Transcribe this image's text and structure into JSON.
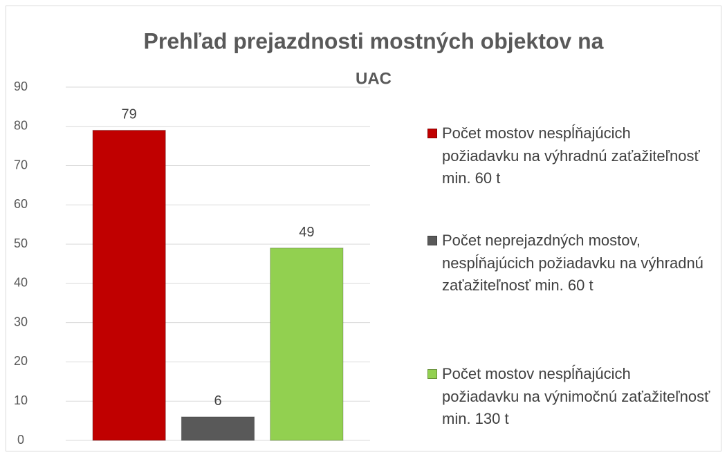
{
  "chart_data": {
    "type": "bar",
    "title": "Prehľad prejazdnosti mostných objektov na",
    "subtitle": "UAC",
    "categories": [
      null
    ],
    "series": [
      {
        "name": "Počet mostov nespĺňajúcich požiadavku na výhradnú zaťažiteľnosť min. 60 t",
        "color": "#c00000",
        "values": [
          79
        ]
      },
      {
        "name": "Počet neprejazdných mostov, nespĺňajúcich požiadavku na výhradnú zaťažiteľnosť min. 60 t",
        "color": "#595959",
        "values": [
          6
        ]
      },
      {
        "name": "Počet mostov nespĺňajúcich požiadavku na výnimočnú zaťažiteľnosť min. 130 t",
        "color": "#92d050",
        "values": [
          49
        ]
      }
    ],
    "ylim": [
      0,
      90
    ],
    "yticks": [
      0,
      10,
      20,
      30,
      40,
      50,
      60,
      70,
      80,
      90
    ],
    "grid": true,
    "legend": "right"
  }
}
